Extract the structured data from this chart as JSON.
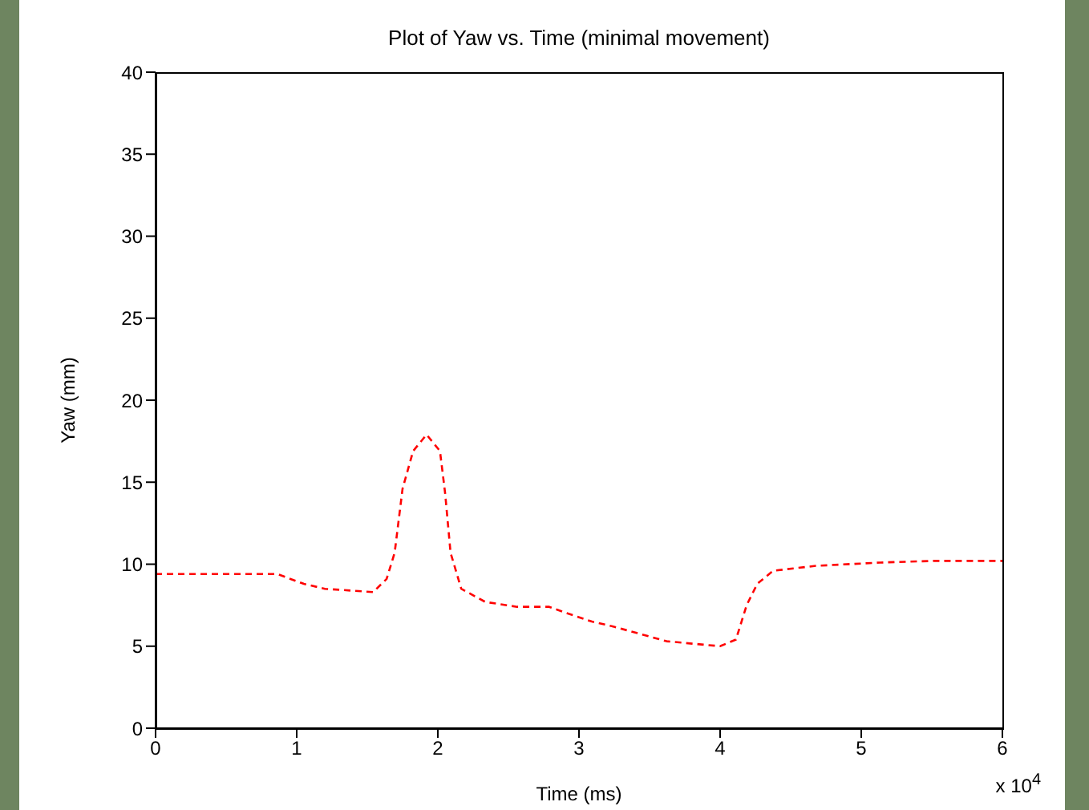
{
  "chart_data": {
    "type": "line",
    "title": "Plot of Yaw vs. Time (minimal movement)",
    "xlabel": "Time (ms)",
    "ylabel": "Yaw (mm)",
    "annotations": [
      "x 10$^{4}$"
    ],
    "x": [
      0,
      0.862,
      1.051,
      1.2,
      1.542,
      1.637,
      1.694,
      1.75,
      1.825,
      1.92,
      2.015,
      2.052,
      2.09,
      2.166,
      2.336,
      2.562,
      2.789,
      2.884,
      3.092,
      3.243,
      3.621,
      3.999,
      4.112,
      4.188,
      4.263,
      4.376,
      4.679,
      5.133,
      5.51,
      6
    ],
    "series": [
      {
        "color": "#ff0000",
        "values": [
          9.4,
          9.4,
          8.8,
          8.5,
          8.3,
          9.1,
          10.7,
          14.6,
          16.9,
          17.9,
          16.9,
          14.3,
          10.7,
          8.5,
          7.7,
          7.4,
          7.4,
          7.1,
          6.5,
          6.2,
          5.3,
          5.0,
          5.4,
          7.5,
          8.8,
          9.6,
          9.9,
          10.1,
          10.2,
          10.2
        ]
      }
    ],
    "xlim": [
      0,
      6
    ],
    "xticks": [
      0,
      1,
      2,
      3,
      4,
      5,
      6
    ],
    "ylim": [
      0,
      40
    ],
    "yticks": [
      0,
      5,
      10,
      15,
      20,
      25,
      30,
      35,
      40
    ],
    "line_style": "dashed",
    "marker": "none",
    "grid": false,
    "legend": false
  }
}
